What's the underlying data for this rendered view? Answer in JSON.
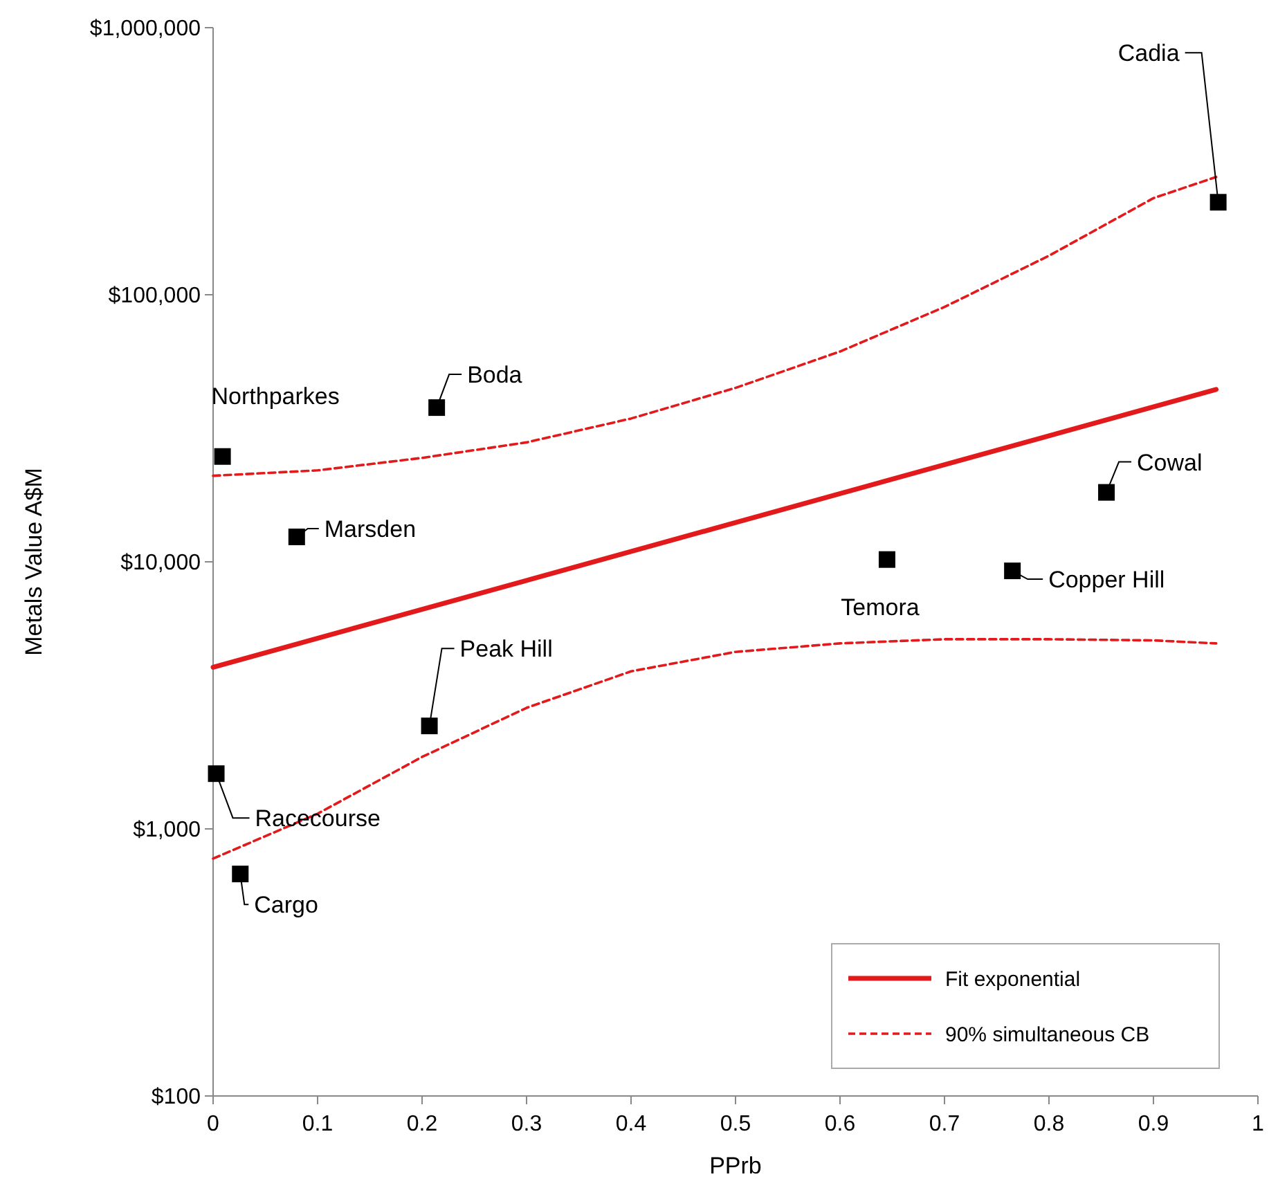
{
  "chart_data": {
    "type": "scatter",
    "xlabel": "PPrb",
    "ylabel": "Metals Value A$M",
    "log": "y",
    "xlim": [
      0,
      1
    ],
    "ylim": [
      100,
      1000000
    ],
    "xticks": [
      0,
      0.1,
      0.2,
      0.3,
      0.4,
      0.5,
      0.6,
      0.7,
      0.8,
      0.9,
      1
    ],
    "yticks": [
      {
        "value": 100,
        "label": "$100"
      },
      {
        "value": 1000,
        "label": "$1,000"
      },
      {
        "value": 10000,
        "label": "$10,000"
      },
      {
        "value": 100000,
        "label": "$100,000"
      },
      {
        "value": 1000000,
        "label": "$1,000,000"
      }
    ],
    "grid": false,
    "legend": "bottom right",
    "series": [
      {
        "color": "#000000",
        "marker": "square",
        "x": [
          0.962,
          0.214,
          0.009,
          0.08,
          0.855,
          0.645,
          0.765,
          0.207,
          0.003,
          0.026
        ],
        "values": [
          222000,
          37800,
          24800,
          12400,
          18200,
          10200,
          9250,
          2430,
          1610,
          678
        ]
      },
      {
        "type": "line",
        "name": "Fit exponential",
        "color": "#e31a1c",
        "line_style": "solid",
        "marker": "none",
        "x": [
          0,
          0.96
        ],
        "values": [
          4030,
          44200
        ]
      },
      {
        "type": "line",
        "name": "90% simultaneous CB",
        "color": "#e31a1c",
        "line_style": "dashed",
        "marker": "none",
        "x": [
          0,
          0.1,
          0.2,
          0.3,
          0.4,
          0.5,
          0.6,
          0.7,
          0.8,
          0.9,
          0.96
        ],
        "values": [
          21000,
          22000,
          24500,
          28000,
          34400,
          44800,
          61300,
          90000,
          140000,
          230000,
          276000
        ]
      },
      {
        "type": "line",
        "color": "#e31a1c",
        "line_style": "dashed",
        "marker": "none",
        "x": [
          0,
          0.1,
          0.2,
          0.3,
          0.4,
          0.5,
          0.6,
          0.7,
          0.8,
          0.9,
          0.96
        ],
        "values": [
          774,
          1140,
          1860,
          2840,
          3890,
          4600,
          4950,
          5130,
          5130,
          5080,
          4950
        ]
      }
    ],
    "annotations": [
      {
        "text": "Cadia",
        "x": 0.962,
        "y": 222000
      },
      {
        "text": "Boda",
        "x": 0.214,
        "y": 37800
      },
      {
        "text": "Northparkes",
        "x": 0.009,
        "y": 24800
      },
      {
        "text": "Marsden",
        "x": 0.08,
        "y": 12400
      },
      {
        "text": "Cowal",
        "x": 0.855,
        "y": 18200
      },
      {
        "text": "Temora",
        "x": 0.645,
        "y": 10200
      },
      {
        "text": "Copper Hill",
        "x": 0.765,
        "y": 9250
      },
      {
        "text": "Peak Hill",
        "x": 0.207,
        "y": 2430
      },
      {
        "text": "Racecourse",
        "x": 0.003,
        "y": 1610
      },
      {
        "text": "Cargo",
        "x": 0.026,
        "y": 678
      }
    ]
  }
}
